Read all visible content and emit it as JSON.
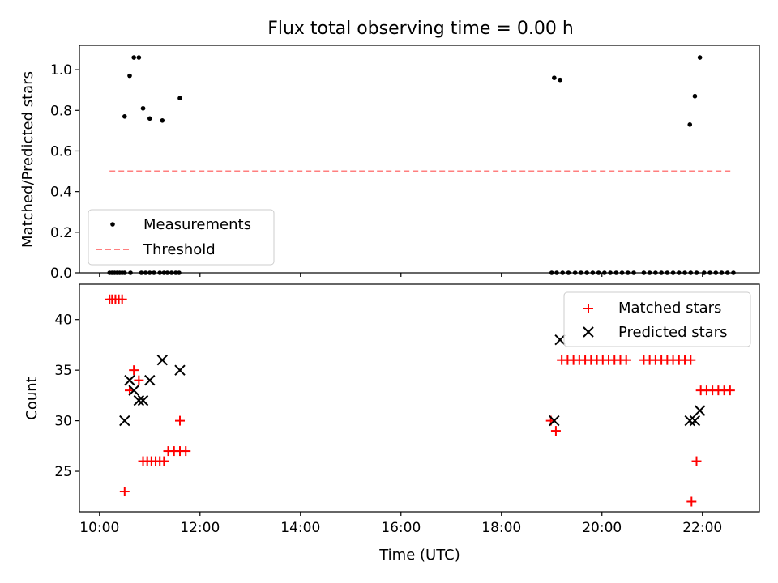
{
  "title": "Flux total observing time = 0.00 h",
  "colors": {
    "measurement": "#000000",
    "threshold": "#ff7f7f",
    "matched": "#ff0000",
    "predicted": "#000000"
  },
  "chart_data": [
    {
      "type": "scatter",
      "title": "Flux total observing time = 0.00 h",
      "ylabel": "Matched/Predicted stars",
      "xlabel": "",
      "xlim": [
        "09:36",
        "23:08"
      ],
      "ylim": [
        0,
        1.12
      ],
      "yticks": [
        "0.0",
        "0.2",
        "0.4",
        "0.6",
        "0.8",
        "1.0"
      ],
      "grid": false,
      "legend_position": "lower-left",
      "legend": [
        {
          "label": "Measurements",
          "marker": "dot"
        },
        {
          "label": "Threshold",
          "marker": "dashed-line"
        }
      ],
      "series": [
        {
          "name": "Measurements",
          "style": "dot",
          "x": [
            "10:12",
            "10:15",
            "10:18",
            "10:21",
            "10:24",
            "10:27",
            "10:30",
            "10:37",
            "10:50",
            "10:55",
            "11:00",
            "11:05",
            "11:12",
            "11:17",
            "11:21",
            "11:26",
            "11:31",
            "11:35",
            "10:30",
            "10:36",
            "10:41",
            "10:47",
            "10:52",
            "11:00",
            "11:15",
            "11:36",
            "19:00",
            "19:06",
            "19:13",
            "19:20",
            "19:28",
            "19:35",
            "19:42",
            "19:49",
            "19:56",
            "20:03",
            "20:10",
            "20:17",
            "20:24",
            "20:31",
            "20:38",
            "19:03",
            "19:10",
            "20:50",
            "20:57",
            "21:04",
            "21:11",
            "21:18",
            "21:25",
            "21:32",
            "21:39",
            "21:46",
            "21:53",
            "21:45",
            "21:51",
            "21:57",
            "22:02",
            "22:09",
            "22:16",
            "22:23",
            "22:30",
            "22:37"
          ],
          "y": [
            0,
            0,
            0,
            0,
            0,
            0,
            0,
            0,
            0,
            0,
            0,
            0,
            0,
            0,
            0,
            0,
            0,
            0,
            0.77,
            0.97,
            1.06,
            1.06,
            0.81,
            0.76,
            0.75,
            0.86,
            0,
            0,
            0,
            0,
            0,
            0,
            0,
            0,
            0,
            0,
            0,
            0,
            0,
            0,
            0,
            0.96,
            0.95,
            0,
            0,
            0,
            0,
            0,
            0,
            0,
            0,
            0,
            0,
            0.73,
            0.87,
            1.06,
            0,
            0,
            0,
            0,
            0,
            0
          ]
        },
        {
          "name": "Threshold",
          "style": "dashed",
          "x": [
            "10:12",
            "22:37"
          ],
          "y": [
            0.5,
            0.5
          ]
        }
      ]
    },
    {
      "type": "scatter",
      "title": "",
      "xlabel": "Time (UTC)",
      "ylabel": "Count",
      "xlim": [
        "09:36",
        "23:08"
      ],
      "ylim": [
        21,
        43.5
      ],
      "xticks": [
        "10:00",
        "12:00",
        "14:00",
        "16:00",
        "18:00",
        "20:00",
        "22:00"
      ],
      "yticks": [
        "25",
        "30",
        "35",
        "40"
      ],
      "grid": false,
      "legend_position": "upper-right",
      "legend": [
        {
          "label": "Matched stars",
          "marker": "plus"
        },
        {
          "label": "Predicted stars",
          "marker": "x"
        }
      ],
      "series": [
        {
          "name": "Matched stars",
          "style": "plus",
          "x": [
            "10:12",
            "10:15",
            "10:19",
            "10:23",
            "10:27",
            "10:30",
            "10:36",
            "10:41",
            "10:47",
            "10:52",
            "10:57",
            "11:02",
            "11:07",
            "11:12",
            "11:17",
            "11:22",
            "11:29",
            "11:36",
            "11:43",
            "11:36",
            "18:59",
            "19:05",
            "19:12",
            "19:19",
            "19:26",
            "19:33",
            "19:40",
            "19:47",
            "19:54",
            "20:01",
            "20:08",
            "20:15",
            "20:22",
            "20:29",
            "20:50",
            "20:57",
            "21:04",
            "21:11",
            "21:18",
            "21:25",
            "21:32",
            "21:39",
            "21:46",
            "21:47",
            "21:53",
            "21:58",
            "22:05",
            "22:12",
            "22:19",
            "22:26",
            "22:33"
          ],
          "y": [
            42,
            42,
            42,
            42,
            42,
            23,
            33,
            35,
            34,
            26,
            26,
            26,
            26,
            26,
            26,
            27,
            27,
            27,
            27,
            30,
            30,
            29,
            36,
            36,
            36,
            36,
            36,
            36,
            36,
            36,
            36,
            36,
            36,
            36,
            36,
            36,
            36,
            36,
            36,
            36,
            36,
            36,
            36,
            22,
            26,
            33,
            33,
            33,
            33,
            33,
            33
          ]
        },
        {
          "name": "Predicted stars",
          "style": "x",
          "x": [
            "10:30",
            "10:36",
            "10:41",
            "10:47",
            "10:52",
            "11:00",
            "11:15",
            "11:36",
            "19:03",
            "19:10",
            "21:45",
            "21:51",
            "21:57"
          ],
          "y": [
            30,
            34,
            33,
            32,
            32,
            34,
            36,
            35,
            30,
            38,
            30,
            30,
            31
          ]
        }
      ]
    }
  ]
}
